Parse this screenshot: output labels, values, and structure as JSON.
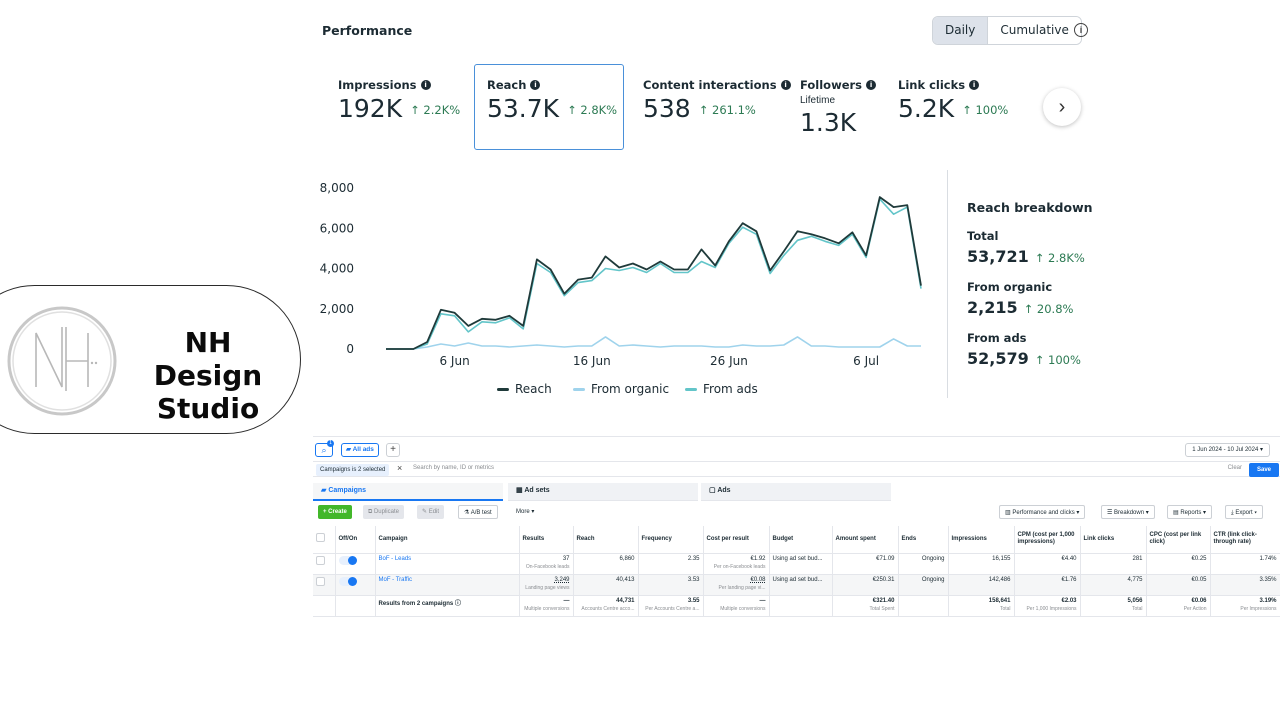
{
  "brand": {
    "name_line1": "NH Design",
    "name_line2": "Studio"
  },
  "performance": {
    "title": "Performance",
    "toggle": {
      "daily": "Daily",
      "cumulative": "Cumulative"
    },
    "metrics": [
      {
        "label": "Impressions",
        "value": "192K",
        "change": "↑ 2.2K%"
      },
      {
        "label": "Reach",
        "value": "53.7K",
        "change": "↑ 2.8K%"
      },
      {
        "label": "Content interactions",
        "value": "538",
        "change": "↑ 261.1%"
      },
      {
        "label": "Followers",
        "sublabel": "Lifetime",
        "value": "1.3K",
        "change": ""
      },
      {
        "label": "Link clicks",
        "value": "5.2K",
        "change": "↑ 100%"
      }
    ],
    "breakdown": {
      "title": "Reach breakdown",
      "total_label": "Total",
      "total_value": "53,721",
      "total_change": "↑ 2.8K%",
      "organic_label": "From organic",
      "organic_value": "2,215",
      "organic_change": "↑ 20.8%",
      "ads_label": "From ads",
      "ads_value": "52,579",
      "ads_change": "↑ 100%"
    }
  },
  "chart_data": {
    "type": "line",
    "ylim": [
      0,
      8000
    ],
    "yticks": [
      "8,000",
      "6,000",
      "4,000",
      "2,000",
      "0"
    ],
    "ytick_values": [
      8000,
      6000,
      4000,
      2000,
      0
    ],
    "xticks": [
      "6 Jun",
      "16 Jun",
      "26 Jun",
      "6 Jul"
    ],
    "xtick_index": [
      5,
      15,
      25,
      35
    ],
    "legend": [
      "Reach",
      "From organic",
      "From ads"
    ],
    "colors": {
      "reach": "#1f3a3a",
      "organic": "#9fd3ec",
      "ads": "#63c5c9"
    },
    "series": [
      {
        "name": "Reach",
        "values": [
          0,
          0,
          0,
          350,
          1950,
          1800,
          1150,
          1500,
          1450,
          1650,
          1150,
          4450,
          3950,
          2750,
          3450,
          3550,
          4600,
          4050,
          4250,
          3950,
          4350,
          3950,
          3950,
          4950,
          4150,
          5350,
          6250,
          5850,
          3900,
          4850,
          5850,
          5700,
          5500,
          5250,
          5800,
          4650,
          7550,
          7050,
          7150,
          3150
        ]
      },
      {
        "name": "From organic",
        "values": [
          0,
          0,
          0,
          100,
          250,
          150,
          300,
          150,
          150,
          100,
          150,
          200,
          150,
          100,
          150,
          150,
          600,
          150,
          200,
          150,
          100,
          150,
          150,
          150,
          100,
          100,
          200,
          150,
          150,
          200,
          600,
          150,
          150,
          100,
          100,
          100,
          100,
          500,
          150,
          150
        ]
      },
      {
        "name": "From ads",
        "values": [
          0,
          0,
          0,
          250,
          1750,
          1650,
          850,
          1350,
          1300,
          1550,
          1000,
          4250,
          3800,
          2650,
          3300,
          3400,
          4000,
          3900,
          4050,
          3800,
          4250,
          3800,
          3800,
          4350,
          4050,
          5250,
          6050,
          5700,
          3750,
          4650,
          5400,
          5600,
          5350,
          5150,
          5700,
          4550,
          7450,
          6700,
          7050,
          3000
        ]
      }
    ]
  },
  "ads": {
    "all_ads": "All ads",
    "date_range": "1 Jun 2024 - 10 Jul 2024",
    "filter_chip": "Campaigns is 2 selected",
    "search_placeholder": "Search by name, ID or metrics",
    "clear": "Clear",
    "save": "Save",
    "tabs": {
      "campaigns": "Campaigns",
      "adsets": "Ad sets",
      "ads": "Ads"
    },
    "toolbar": {
      "create": "+ Create",
      "duplicate": "Duplicate",
      "edit": "Edit",
      "ab_test": "A/B test",
      "more": "More",
      "perf": "Performance and clicks",
      "breakdown": "Breakdown",
      "reports": "Reports",
      "export": "Export"
    },
    "columns": [
      "Off/On",
      "Campaign",
      "Results",
      "Reach",
      "Frequency",
      "Cost per result",
      "Budget",
      "Amount spent",
      "Ends",
      "Impressions",
      "CPM (cost per 1,000 impressions)",
      "Link clicks",
      "CPC (cost per link click)",
      "CTR (link click-through rate)"
    ],
    "rows": [
      {
        "campaign": "BoF - Leads",
        "results": "37",
        "results_sub": "On-Facebook leads",
        "reach": "6,860",
        "frequency": "2.35",
        "cpr": "€1.92",
        "cpr_sub": "Per on-Facebook leads",
        "budget": "Using ad set bud...",
        "spent": "€71.09",
        "ends": "Ongoing",
        "impressions": "16,155",
        "cpm": "€4.40",
        "clicks": "281",
        "cpc": "€0.25",
        "ctr": "1.74%"
      },
      {
        "campaign": "MoF - Traffic",
        "results": "3,249",
        "results_sub": "Landing page views",
        "reach": "40,413",
        "frequency": "3.53",
        "cpr": "€0.08",
        "cpr_sub": "Per landing page vi...",
        "budget": "Using ad set bud...",
        "spent": "€250.31",
        "ends": "Ongoing",
        "impressions": "142,486",
        "cpm": "€1.76",
        "clicks": "4,775",
        "cpc": "€0.05",
        "ctr": "3.35%"
      }
    ],
    "totals": {
      "label": "Results from 2 campaigns",
      "results": "—",
      "results_sub": "Multiple conversions",
      "reach": "44,731",
      "reach_sub": "Accounts Centre acco...",
      "frequency": "3.55",
      "frequency_sub": "Per Accounts Centre a...",
      "cpr": "—",
      "cpr_sub": "Multiple conversions",
      "spent": "€321.40",
      "spent_sub": "Total Spent",
      "impressions": "158,641",
      "impressions_sub": "Total",
      "cpm": "€2.03",
      "cpm_sub": "Per 1,000 Impressions",
      "clicks": "5,056",
      "clicks_sub": "Total",
      "cpc": "€0.06",
      "cpc_sub": "Per Action",
      "ctr": "3.19%",
      "ctr_sub": "Per Impressions"
    }
  }
}
